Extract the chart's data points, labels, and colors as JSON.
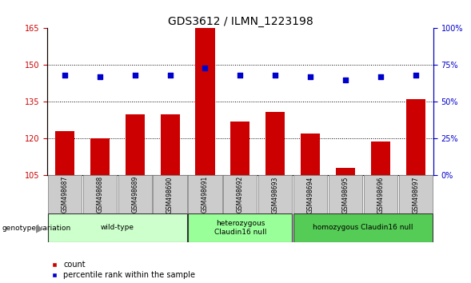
{
  "title": "GDS3612 / ILMN_1223198",
  "samples": [
    "GSM498687",
    "GSM498688",
    "GSM498689",
    "GSM498690",
    "GSM498691",
    "GSM498692",
    "GSM498693",
    "GSM498694",
    "GSM498695",
    "GSM498696",
    "GSM498697"
  ],
  "counts": [
    123,
    120,
    130,
    130,
    165,
    127,
    131,
    122,
    108,
    119,
    136
  ],
  "percentile_ranks": [
    68,
    67,
    68,
    68,
    73,
    68,
    68,
    67,
    65,
    67,
    68
  ],
  "ylim_left": [
    105,
    165
  ],
  "yticks_left": [
    105,
    120,
    135,
    150,
    165
  ],
  "ylim_right": [
    0,
    100
  ],
  "yticks_right": [
    0,
    25,
    50,
    75,
    100
  ],
  "bar_color": "#cc0000",
  "dot_color": "#0000cc",
  "groups": [
    {
      "label": "wild-type",
      "start": 0,
      "end": 3,
      "color": "#ccffcc"
    },
    {
      "label": "heterozygous\nClaudin16 null",
      "start": 4,
      "end": 6,
      "color": "#99ff99"
    },
    {
      "label": "homozygous Claudin16 null",
      "start": 7,
      "end": 10,
      "color": "#55cc55"
    }
  ],
  "legend_count_color": "#cc0000",
  "legend_dot_color": "#0000cc",
  "genotype_label": "genotype/variation",
  "plot_bg_color": "#ffffff",
  "title_fontsize": 10,
  "tick_label_fontsize": 7,
  "bar_width": 0.55,
  "gridlines": [
    120,
    135,
    150
  ],
  "sample_box_color": "#cccccc",
  "sample_box_edge": "#888888"
}
